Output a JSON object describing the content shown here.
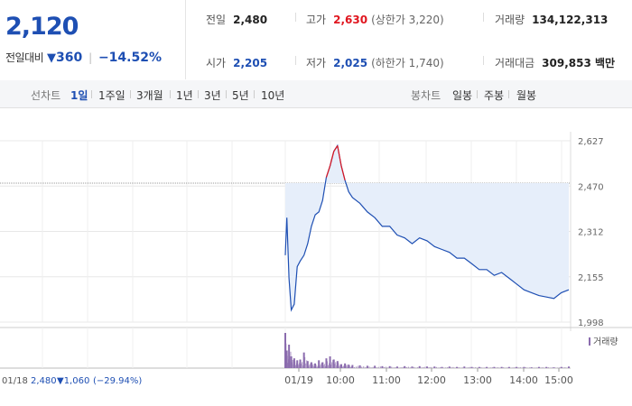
{
  "quote": {
    "price": "2,120",
    "change_label": "전일대비",
    "change_arrow": "▼",
    "change_value": "360",
    "change_pct": "−14.52%"
  },
  "stats": {
    "prev_close_label": "전일",
    "prev_close": "2,480",
    "high_label": "고가",
    "high": "2,630",
    "upper_limit": "(상한가 3,220)",
    "volume_label": "거래량",
    "volume": "134,122,313",
    "open_label": "시가",
    "open": "2,205",
    "low_label": "저가",
    "low": "2,025",
    "lower_limit": "(하한가 1,740)",
    "amount_label": "거래대금",
    "amount": "309,853 백만"
  },
  "tabs": {
    "line_label": "선차트",
    "periods": [
      "1일",
      "1주일",
      "3개월",
      "1년",
      "3년",
      "5년",
      "10년"
    ],
    "selected": "1일",
    "candle_label": "봉차트",
    "candle_periods": [
      "일봉",
      "주봉",
      "월봉"
    ]
  },
  "colors": {
    "accent": "#1e4fb3",
    "up": "#e0161f",
    "fill": "#e6eefa",
    "volume": "#8b6cae"
  },
  "chart_data": {
    "type": "line",
    "y_ticks": [
      "2,627",
      "2,470",
      "2,312",
      "2,155",
      "1,998"
    ],
    "ylim": [
      1998,
      2627
    ],
    "x_ticks": [
      "01/19",
      "10:00",
      "11:00",
      "12:00",
      "13:00",
      "14:00",
      "15:00"
    ],
    "reference_price": 2480,
    "prev_day_label": "01/18",
    "prev_day_close": "2,480",
    "prev_day_change": "▼1,060",
    "prev_day_pct": "(−29.94%)",
    "volume_legend": "거래량",
    "series": [
      {
        "x": [
          "09:00",
          "09:02",
          "09:05",
          "09:08",
          "09:12",
          "09:16",
          "09:20",
          "09:25",
          "09:30",
          "09:35",
          "09:40",
          "09:45",
          "09:50",
          "09:55",
          "10:00",
          "10:05",
          "10:10",
          "10:15",
          "10:20",
          "10:25",
          "10:30",
          "10:40",
          "10:50",
          "11:00",
          "11:10",
          "11:20",
          "11:30",
          "11:40",
          "11:50",
          "12:00",
          "12:10",
          "12:20",
          "12:30",
          "12:40",
          "12:50",
          "13:00",
          "13:10",
          "13:20",
          "13:30",
          "13:40",
          "13:50",
          "14:00",
          "14:10",
          "14:20",
          "14:30",
          "14:40",
          "14:50",
          "15:00",
          "15:10",
          "15:20"
        ],
        "values": [
          2230,
          2360,
          2150,
          2040,
          2060,
          2190,
          2210,
          2230,
          2270,
          2330,
          2370,
          2380,
          2420,
          2500,
          2540,
          2590,
          2610,
          2540,
          2490,
          2450,
          2430,
          2410,
          2380,
          2360,
          2330,
          2330,
          2300,
          2290,
          2270,
          2290,
          2280,
          2260,
          2250,
          2240,
          2220,
          2220,
          2200,
          2180,
          2180,
          2160,
          2170,
          2150,
          2130,
          2110,
          2100,
          2090,
          2085,
          2080,
          2100,
          2110
        ]
      }
    ],
    "volume_values": [
      90,
      45,
      60,
      30,
      25,
      20,
      22,
      40,
      18,
      15,
      12,
      20,
      15,
      25,
      30,
      22,
      18,
      10,
      12,
      9,
      8,
      7,
      6,
      6,
      5,
      5,
      4,
      5,
      4,
      5,
      4,
      4,
      3,
      4,
      3,
      4,
      3,
      3,
      3,
      3,
      3,
      3,
      3,
      3,
      2,
      3,
      3,
      2,
      3,
      4
    ]
  }
}
